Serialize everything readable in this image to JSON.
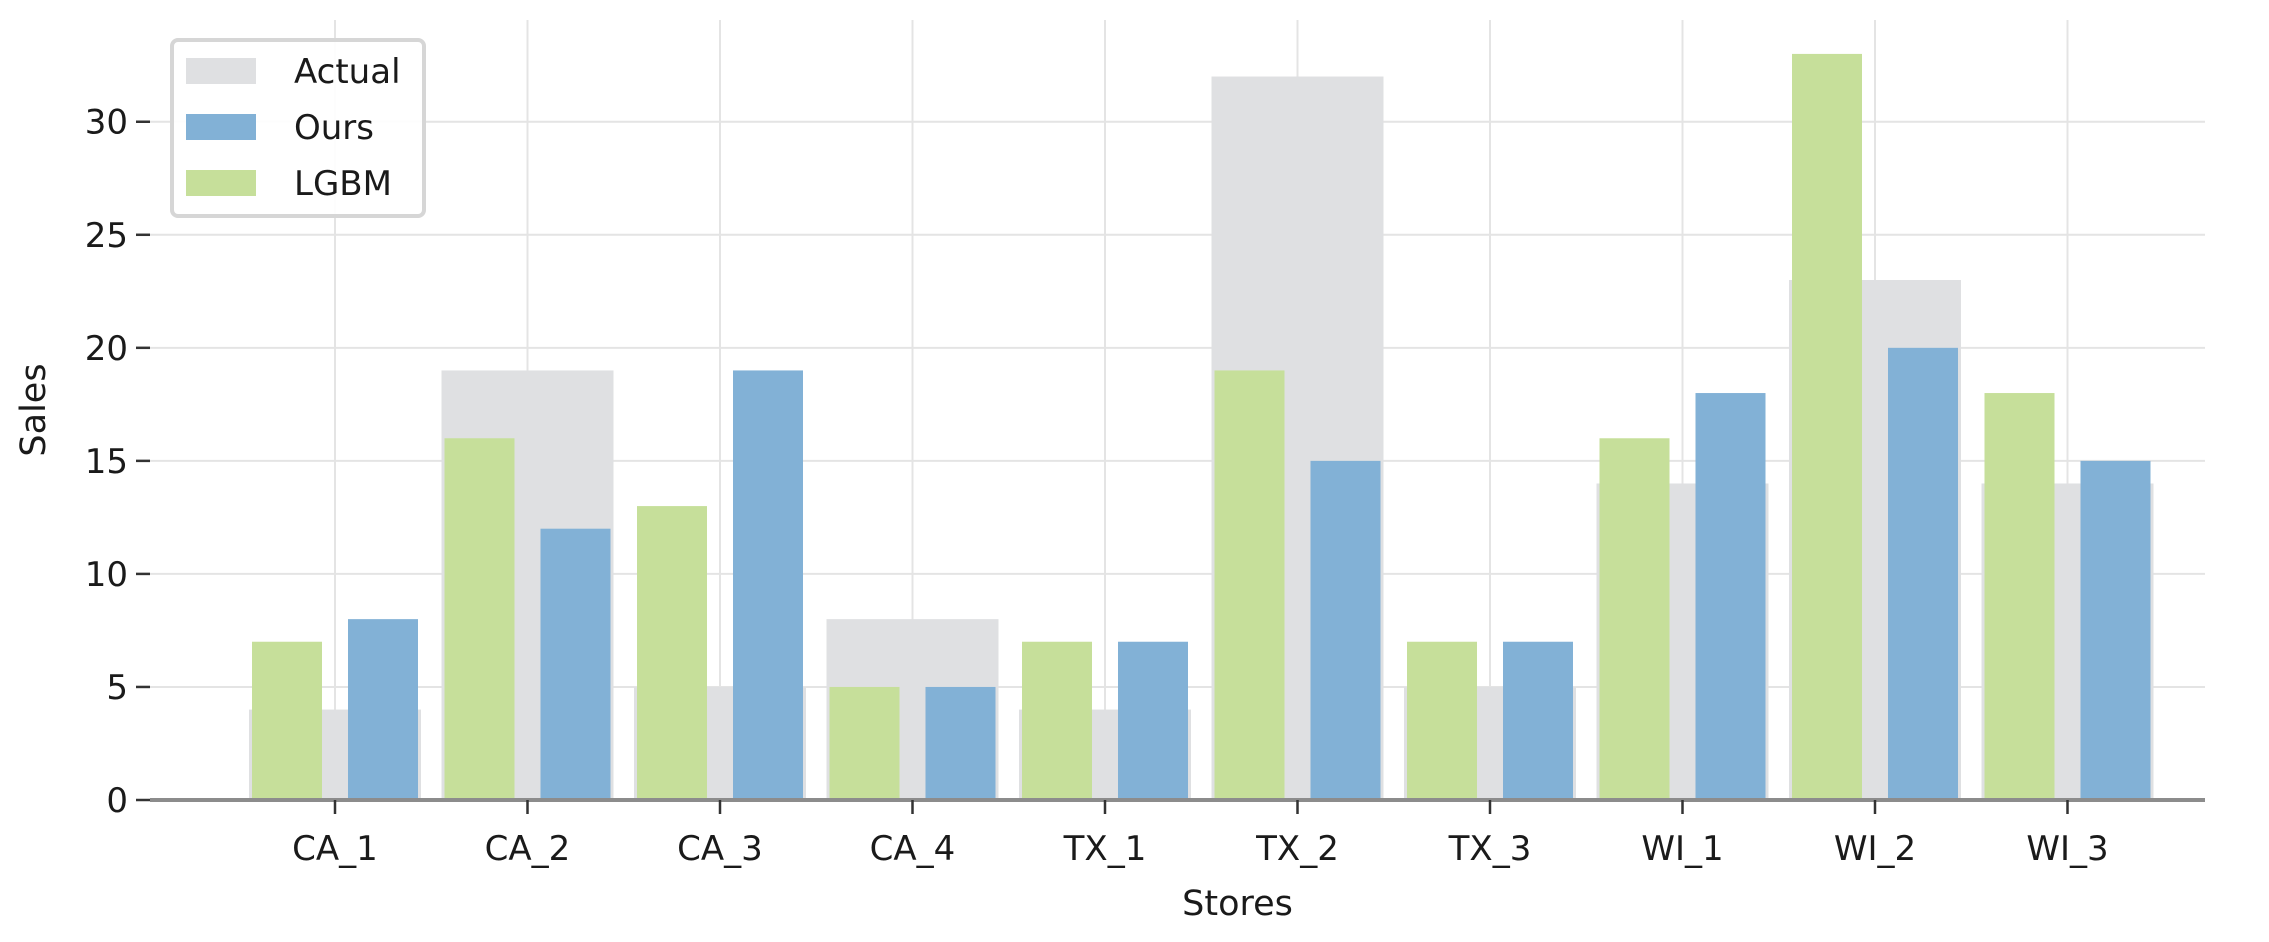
{
  "chart_data": {
    "type": "bar",
    "xlabel": "Stores",
    "ylabel": "Sales",
    "ylim": [
      0,
      34.5
    ],
    "yticks": [
      0,
      5,
      10,
      15,
      20,
      25,
      30
    ],
    "grid": true,
    "legend_position": "top-left",
    "categories": [
      "CA_1",
      "CA_2",
      "CA_3",
      "CA_4",
      "TX_1",
      "TX_2",
      "TX_3",
      "WI_1",
      "WI_2",
      "WI_3"
    ],
    "series": [
      {
        "name": "Actual",
        "color": "#dfe0e2",
        "values": [
          4,
          19,
          5,
          8,
          4,
          32,
          5,
          14,
          23,
          14
        ]
      },
      {
        "name": "Ours",
        "color": "#82b1d6",
        "values": [
          8,
          12,
          19,
          5,
          7,
          15,
          7,
          18,
          20,
          15
        ]
      },
      {
        "name": "LGBM",
        "color": "#c6df9a",
        "values": [
          7,
          16,
          13,
          5,
          7,
          19,
          7,
          16,
          33,
          18
        ]
      }
    ]
  }
}
